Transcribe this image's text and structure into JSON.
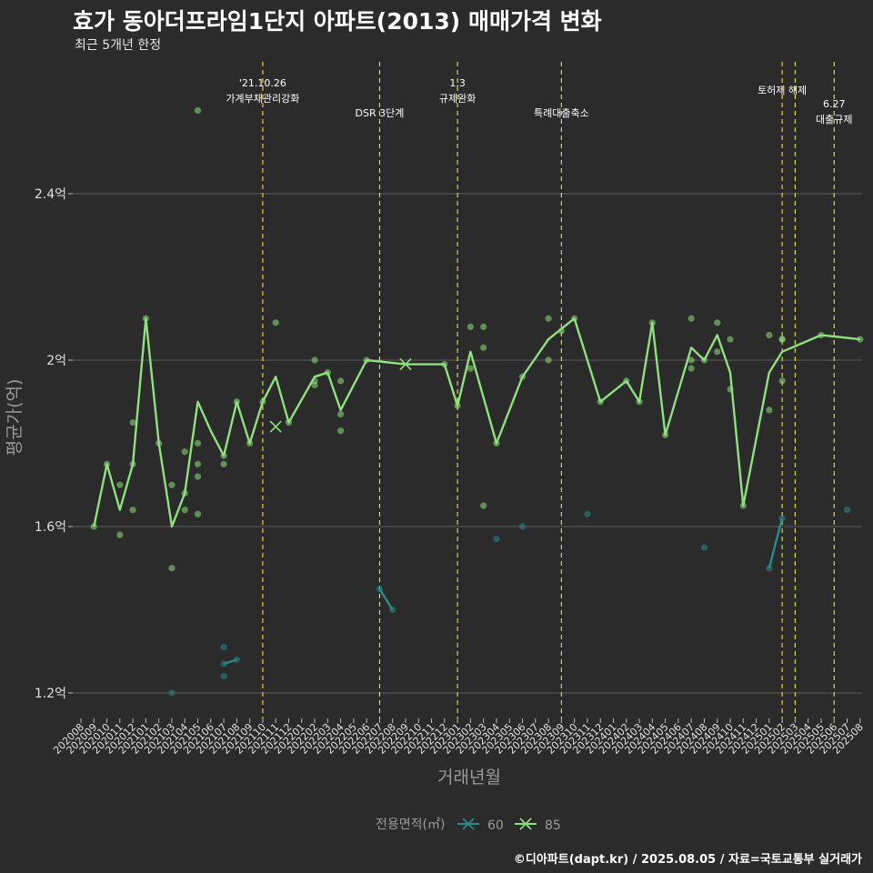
{
  "title": "효가 동아더프라임1단지 아파트(2013) 매매가격 변화",
  "subtitle": "최근 5개년 한정",
  "caption": "©디아파트(dapt.kr) / 2025.08.05 / 자료=국토교통부 실거래가",
  "chart_data": {
    "type": "line",
    "xlabel": "거래년월",
    "ylabel": "평균가(억)",
    "ylim": [
      1.1,
      2.75
    ],
    "y_ticks": [
      {
        "value": 1.2,
        "label": "1.2억"
      },
      {
        "value": 1.6,
        "label": "1.6억"
      },
      {
        "value": 2.0,
        "label": "2억"
      },
      {
        "value": 2.4,
        "label": "2.4억"
      }
    ],
    "x_categories": [
      "202008",
      "202009",
      "202010",
      "202011",
      "202012",
      "202101",
      "202102",
      "202103",
      "202104",
      "202105",
      "202106",
      "202107",
      "202108",
      "202109",
      "202110",
      "202111",
      "202112",
      "202201",
      "202202",
      "202203",
      "202204",
      "202205",
      "202206",
      "202207",
      "202208",
      "202209",
      "202210",
      "202211",
      "202212",
      "202301",
      "202302",
      "202303",
      "202304",
      "202305",
      "202306",
      "202307",
      "202308",
      "202309",
      "202310",
      "202311",
      "202312",
      "202401",
      "202402",
      "202403",
      "202404",
      "202405",
      "202406",
      "202407",
      "202408",
      "202409",
      "202410",
      "202411",
      "202412",
      "202501",
      "202502",
      "202503",
      "202504",
      "202505",
      "202506",
      "202507",
      "202508"
    ],
    "grid": true,
    "legend": {
      "title": "전용면적(㎡)",
      "position": "bottom",
      "items": [
        {
          "name": "60",
          "color": "#2a8a8c"
        },
        {
          "name": "85",
          "color": "#8fe07e"
        }
      ]
    },
    "annotations": [
      {
        "x": "202110",
        "lines": [
          "'21.10.26",
          "가계부채관리강화"
        ],
        "color": "#e8e84a"
      },
      {
        "x": "202207",
        "lines": [
          "DSR 3단계"
        ],
        "color": "#e8e84a"
      },
      {
        "x": "202301",
        "lines": [
          "1.3",
          "규제완화"
        ],
        "color": "#e8e84a"
      },
      {
        "x": "202309",
        "lines": [
          "특례대출축소"
        ],
        "color": "#e8e84a"
      },
      {
        "x": "202502",
        "lines": [
          "토허제 해제"
        ],
        "color": "#e8e84a"
      },
      {
        "x": "202503",
        "lines": [],
        "color": "#e8e84a"
      },
      {
        "x": "202506",
        "lines": [
          "6.27",
          "대출규제"
        ],
        "color": "#e8e84a"
      }
    ],
    "series": [
      {
        "name": "85",
        "color": "#8fe07e",
        "line": [
          [
            "202009",
            1.6
          ],
          [
            "202010",
            1.75
          ],
          [
            "202011",
            1.64
          ],
          [
            "202012",
            1.75
          ],
          [
            "202101",
            2.1
          ],
          [
            "202102",
            1.8
          ],
          [
            "202103",
            1.6
          ],
          [
            "202104",
            1.68
          ],
          [
            "202105",
            1.9
          ],
          [
            "202106",
            1.83
          ],
          [
            "202107",
            1.77
          ],
          [
            "202108",
            1.9
          ],
          [
            "202109",
            1.8
          ],
          [
            "202110",
            1.9
          ],
          [
            "202111",
            1.96
          ],
          [
            "202112",
            1.85
          ],
          [
            "202202",
            1.96
          ],
          [
            "202203",
            1.97
          ],
          [
            "202204",
            1.88
          ],
          [
            "202206",
            2.0
          ],
          [
            "202209",
            1.99
          ],
          [
            "202212",
            1.99
          ],
          [
            "202301",
            1.89
          ],
          [
            "202302",
            2.02
          ],
          [
            "202304",
            1.8
          ],
          [
            "202306",
            1.96
          ],
          [
            "202308",
            2.05
          ],
          [
            "202310",
            2.1
          ],
          [
            "202312",
            1.9
          ],
          [
            "202402",
            1.95
          ],
          [
            "202403",
            1.9
          ],
          [
            "202404",
            2.09
          ],
          [
            "202405",
            1.82
          ],
          [
            "202407",
            2.03
          ],
          [
            "202408",
            2.0
          ],
          [
            "202409",
            2.06
          ],
          [
            "202410",
            1.97
          ],
          [
            "202411",
            1.65
          ],
          [
            "202501",
            1.97
          ],
          [
            "202502",
            2.02
          ],
          [
            "202505",
            2.06
          ],
          [
            "202508",
            2.05
          ]
        ],
        "points": [
          [
            "202009",
            1.6
          ],
          [
            "202010",
            1.75
          ],
          [
            "202011",
            1.7
          ],
          [
            "202011",
            1.58
          ],
          [
            "202012",
            1.85
          ],
          [
            "202012",
            1.64
          ],
          [
            "202012",
            1.75
          ],
          [
            "202101",
            2.1
          ],
          [
            "202102",
            1.8
          ],
          [
            "202103",
            1.7
          ],
          [
            "202103",
            1.5
          ],
          [
            "202104",
            1.78
          ],
          [
            "202104",
            1.64
          ],
          [
            "202104",
            1.68
          ],
          [
            "202105",
            2.6
          ],
          [
            "202105",
            1.8
          ],
          [
            "202105",
            1.75
          ],
          [
            "202105",
            1.72
          ],
          [
            "202105",
            1.63
          ],
          [
            "202107",
            1.77
          ],
          [
            "202107",
            1.75
          ],
          [
            "202108",
            1.9
          ],
          [
            "202109",
            1.8
          ],
          [
            "202110",
            1.9
          ],
          [
            "202111",
            2.09
          ],
          [
            "202112",
            1.85
          ],
          [
            "202202",
            2.0
          ],
          [
            "202202",
            1.95
          ],
          [
            "202202",
            1.94
          ],
          [
            "202203",
            1.97
          ],
          [
            "202204",
            1.95
          ],
          [
            "202204",
            1.87
          ],
          [
            "202204",
            1.83
          ],
          [
            "202206",
            2.0
          ],
          [
            "202212",
            1.99
          ],
          [
            "202301",
            1.89
          ],
          [
            "202302",
            2.08
          ],
          [
            "202302",
            1.98
          ],
          [
            "202303",
            2.08
          ],
          [
            "202303",
            2.03
          ],
          [
            "202303",
            1.65
          ],
          [
            "202304",
            1.8
          ],
          [
            "202306",
            1.96
          ],
          [
            "202308",
            2.1
          ],
          [
            "202308",
            2.0
          ],
          [
            "202309",
            2.07
          ],
          [
            "202310",
            2.1
          ],
          [
            "202312",
            1.9
          ],
          [
            "202402",
            1.95
          ],
          [
            "202403",
            1.9
          ],
          [
            "202404",
            2.09
          ],
          [
            "202405",
            1.82
          ],
          [
            "202407",
            2.1
          ],
          [
            "202407",
            2.0
          ],
          [
            "202407",
            1.98
          ],
          [
            "202408",
            2.0
          ],
          [
            "202409",
            2.09
          ],
          [
            "202409",
            2.02
          ],
          [
            "202410",
            2.05
          ],
          [
            "202410",
            1.93
          ],
          [
            "202411",
            1.65
          ],
          [
            "202501",
            2.06
          ],
          [
            "202501",
            1.88
          ],
          [
            "202502",
            2.05
          ],
          [
            "202502",
            2.05
          ],
          [
            "202502",
            1.95
          ],
          [
            "202505",
            2.06
          ],
          [
            "202508",
            2.05
          ]
        ],
        "cross_markers": [
          [
            "202111",
            1.84
          ],
          [
            "202209",
            1.99
          ]
        ]
      },
      {
        "name": "60",
        "color": "#2a8a8c",
        "line": [
          [
            "202107",
            1.27
          ],
          [
            "202108",
            1.28
          ]
        ],
        "line2": [
          [
            "202207",
            1.45
          ],
          [
            "202208",
            1.4
          ]
        ],
        "line3": [
          [
            "202501",
            1.5
          ],
          [
            "202502",
            1.62
          ]
        ],
        "points": [
          [
            "202103",
            1.2
          ],
          [
            "202107",
            1.31
          ],
          [
            "202107",
            1.27
          ],
          [
            "202107",
            1.24
          ],
          [
            "202108",
            1.28
          ],
          [
            "202207",
            1.45
          ],
          [
            "202208",
            1.4
          ],
          [
            "202304",
            1.57
          ],
          [
            "202306",
            1.6
          ],
          [
            "202311",
            1.63
          ],
          [
            "202408",
            1.55
          ],
          [
            "202501",
            1.5
          ],
          [
            "202502",
            1.62
          ],
          [
            "202507",
            1.64
          ]
        ]
      }
    ]
  }
}
